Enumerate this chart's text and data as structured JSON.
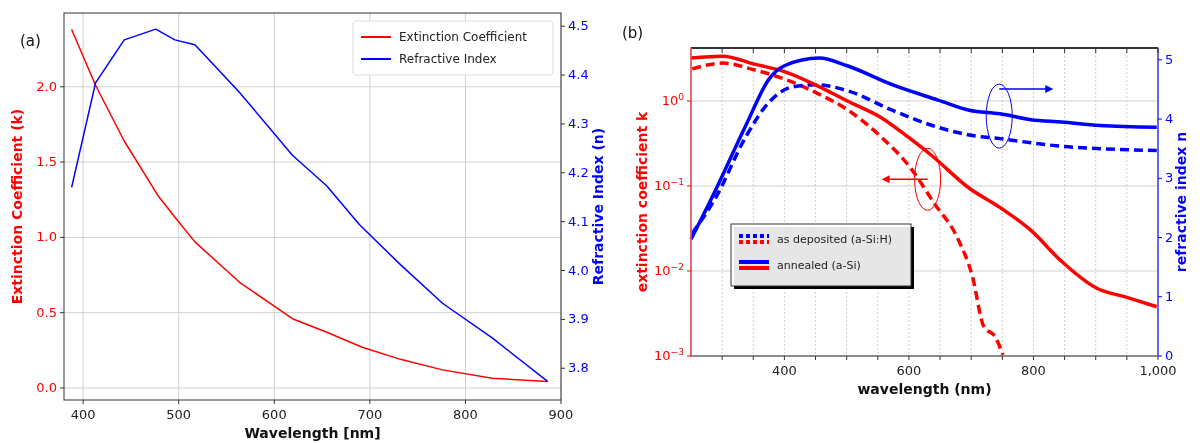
{
  "chart_data": [
    {
      "type": "line",
      "title": "(a)",
      "xlabel": "Wavelength [nm]",
      "ylabel": "Extinction Coefficient (k)",
      "y2label": "Refractive Index (n)",
      "xlim": [
        380,
        900
      ],
      "xticks": [
        400,
        500,
        600,
        700,
        800,
        900
      ],
      "ylim": [
        -0.08,
        2.49
      ],
      "yticks": [
        {
          "value": 0,
          "label": "0.0"
        },
        0.5,
        {
          "value": 1,
          "label": "1.0"
        },
        1.5,
        {
          "value": 2,
          "label": "2.0"
        }
      ],
      "y2lim": [
        3.735,
        4.527
      ],
      "y2ticks": [
        3.8,
        3.9,
        {
          "value": 4,
          "label": "4.0"
        },
        4.1,
        4.2,
        4.3,
        4.4,
        4.5
      ],
      "grid": true,
      "legend": "top right",
      "series": [
        {
          "name": "Extinction Coefficient",
          "color": "#ff0000",
          "x": [
            388,
            413,
            443,
            478,
            499,
            517,
            564,
            619,
            655,
            692,
            732,
            776,
            828,
            886
          ],
          "values": [
            2.38,
            2.01,
            1.64,
            1.28,
            1.11,
            0.97,
            0.7,
            0.46,
            0.37,
            0.27,
            0.19,
            0.12,
            0.064,
            0.043
          ]
        },
        {
          "name": "Refractive Index",
          "color": "#0000ff",
          "axis": "y2",
          "x": [
            388,
            413,
            443,
            476,
            496,
            517,
            563,
            619,
            655,
            689,
            732,
            776,
            828,
            886
          ],
          "values": [
            4.17,
            4.384,
            4.472,
            4.494,
            4.472,
            4.462,
            4.366,
            4.236,
            4.173,
            4.094,
            4.012,
            3.933,
            3.862,
            3.773
          ]
        }
      ]
    },
    {
      "type": "line",
      "title": "(b)",
      "xlabel": "wavelength (nm)",
      "ylabel": "extinction coefficient k",
      "y2label": "refractive index n",
      "log": "y",
      "xlim": [
        250,
        1000
      ],
      "xticks": [
        {
          "value": 300,
          "label": null
        },
        {
          "value": 350,
          "label": null
        },
        400,
        {
          "value": 450,
          "label": null
        },
        {
          "value": 500,
          "label": null
        },
        {
          "value": 550,
          "label": null
        },
        600,
        {
          "value": 650,
          "label": null
        },
        {
          "value": 700,
          "label": null
        },
        {
          "value": 750,
          "label": null
        },
        800,
        {
          "value": 850,
          "label": null
        },
        {
          "value": 900,
          "label": null
        },
        {
          "value": 950,
          "label": null
        },
        {
          "value": 1000,
          "label": "1,000"
        }
      ],
      "ylim": [
        0.001,
        4.2
      ],
      "yticks": [
        {
          "value": 0.001,
          "label": "10$^{−3}$"
        },
        {
          "value": 0.01,
          "label": "10$^{−2}$"
        },
        {
          "value": 0.1,
          "label": "10$^{−1}$"
        },
        {
          "value": 1,
          "label": "10$^{0}$"
        }
      ],
      "y2lim": [
        0,
        5.2
      ],
      "y2ticks": [
        0,
        1,
        2,
        3,
        4,
        5
      ],
      "grid": true,
      "legend": "bottom left",
      "series": [
        {
          "name": "as deposited (a-Si:H)",
          "color": "#ff0000",
          "line_style": "dashed",
          "x": [
            252,
            301,
            350,
            400,
            450,
            501,
            555,
            604,
            641,
            678,
            702,
            720,
            739,
            751
          ],
          "values": [
            2.39,
            2.79,
            2.34,
            1.81,
            1.26,
            0.79,
            0.38,
            0.158,
            0.062,
            0.0244,
            0.0086,
            0.00224,
            0.00166,
            0.00103
          ]
        },
        {
          "color": "#0000ff",
          "line_style": "dashed",
          "axis": "y2",
          "x": [
            252,
            289,
            338,
            375,
            412,
            450,
            501,
            573,
            647,
            697,
            746,
            796,
            845,
            907,
            998
          ],
          "values": [
            2.07,
            2.66,
            3.7,
            4.28,
            4.54,
            4.58,
            4.48,
            4.15,
            3.86,
            3.73,
            3.67,
            3.6,
            3.54,
            3.5,
            3.47
          ]
        },
        {
          "name": "annealed (a-Si)",
          "color": "#ff0000",
          "line_style": "solid",
          "x": [
            250,
            301,
            350,
            400,
            450,
            501,
            555,
            598,
            636,
            697,
            746,
            796,
            845,
            901,
            950,
            998
          ],
          "values": [
            3.2,
            3.37,
            2.73,
            2.22,
            1.55,
            1.0,
            0.64,
            0.38,
            0.23,
            0.094,
            0.056,
            0.03,
            0.013,
            0.0063,
            0.0049,
            0.0038
          ]
        },
        {
          "color": "#0000ff",
          "line_style": "solid",
          "axis": "y2",
          "x": [
            250,
            289,
            338,
            375,
            400,
            456,
            501,
            573,
            647,
            697,
            746,
            796,
            845,
            907,
            998
          ],
          "values": [
            1.97,
            2.79,
            3.89,
            4.67,
            4.9,
            5.03,
            4.9,
            4.58,
            4.32,
            4.15,
            4.09,
            3.99,
            3.95,
            3.89,
            3.86
          ]
        }
      ]
    }
  ]
}
